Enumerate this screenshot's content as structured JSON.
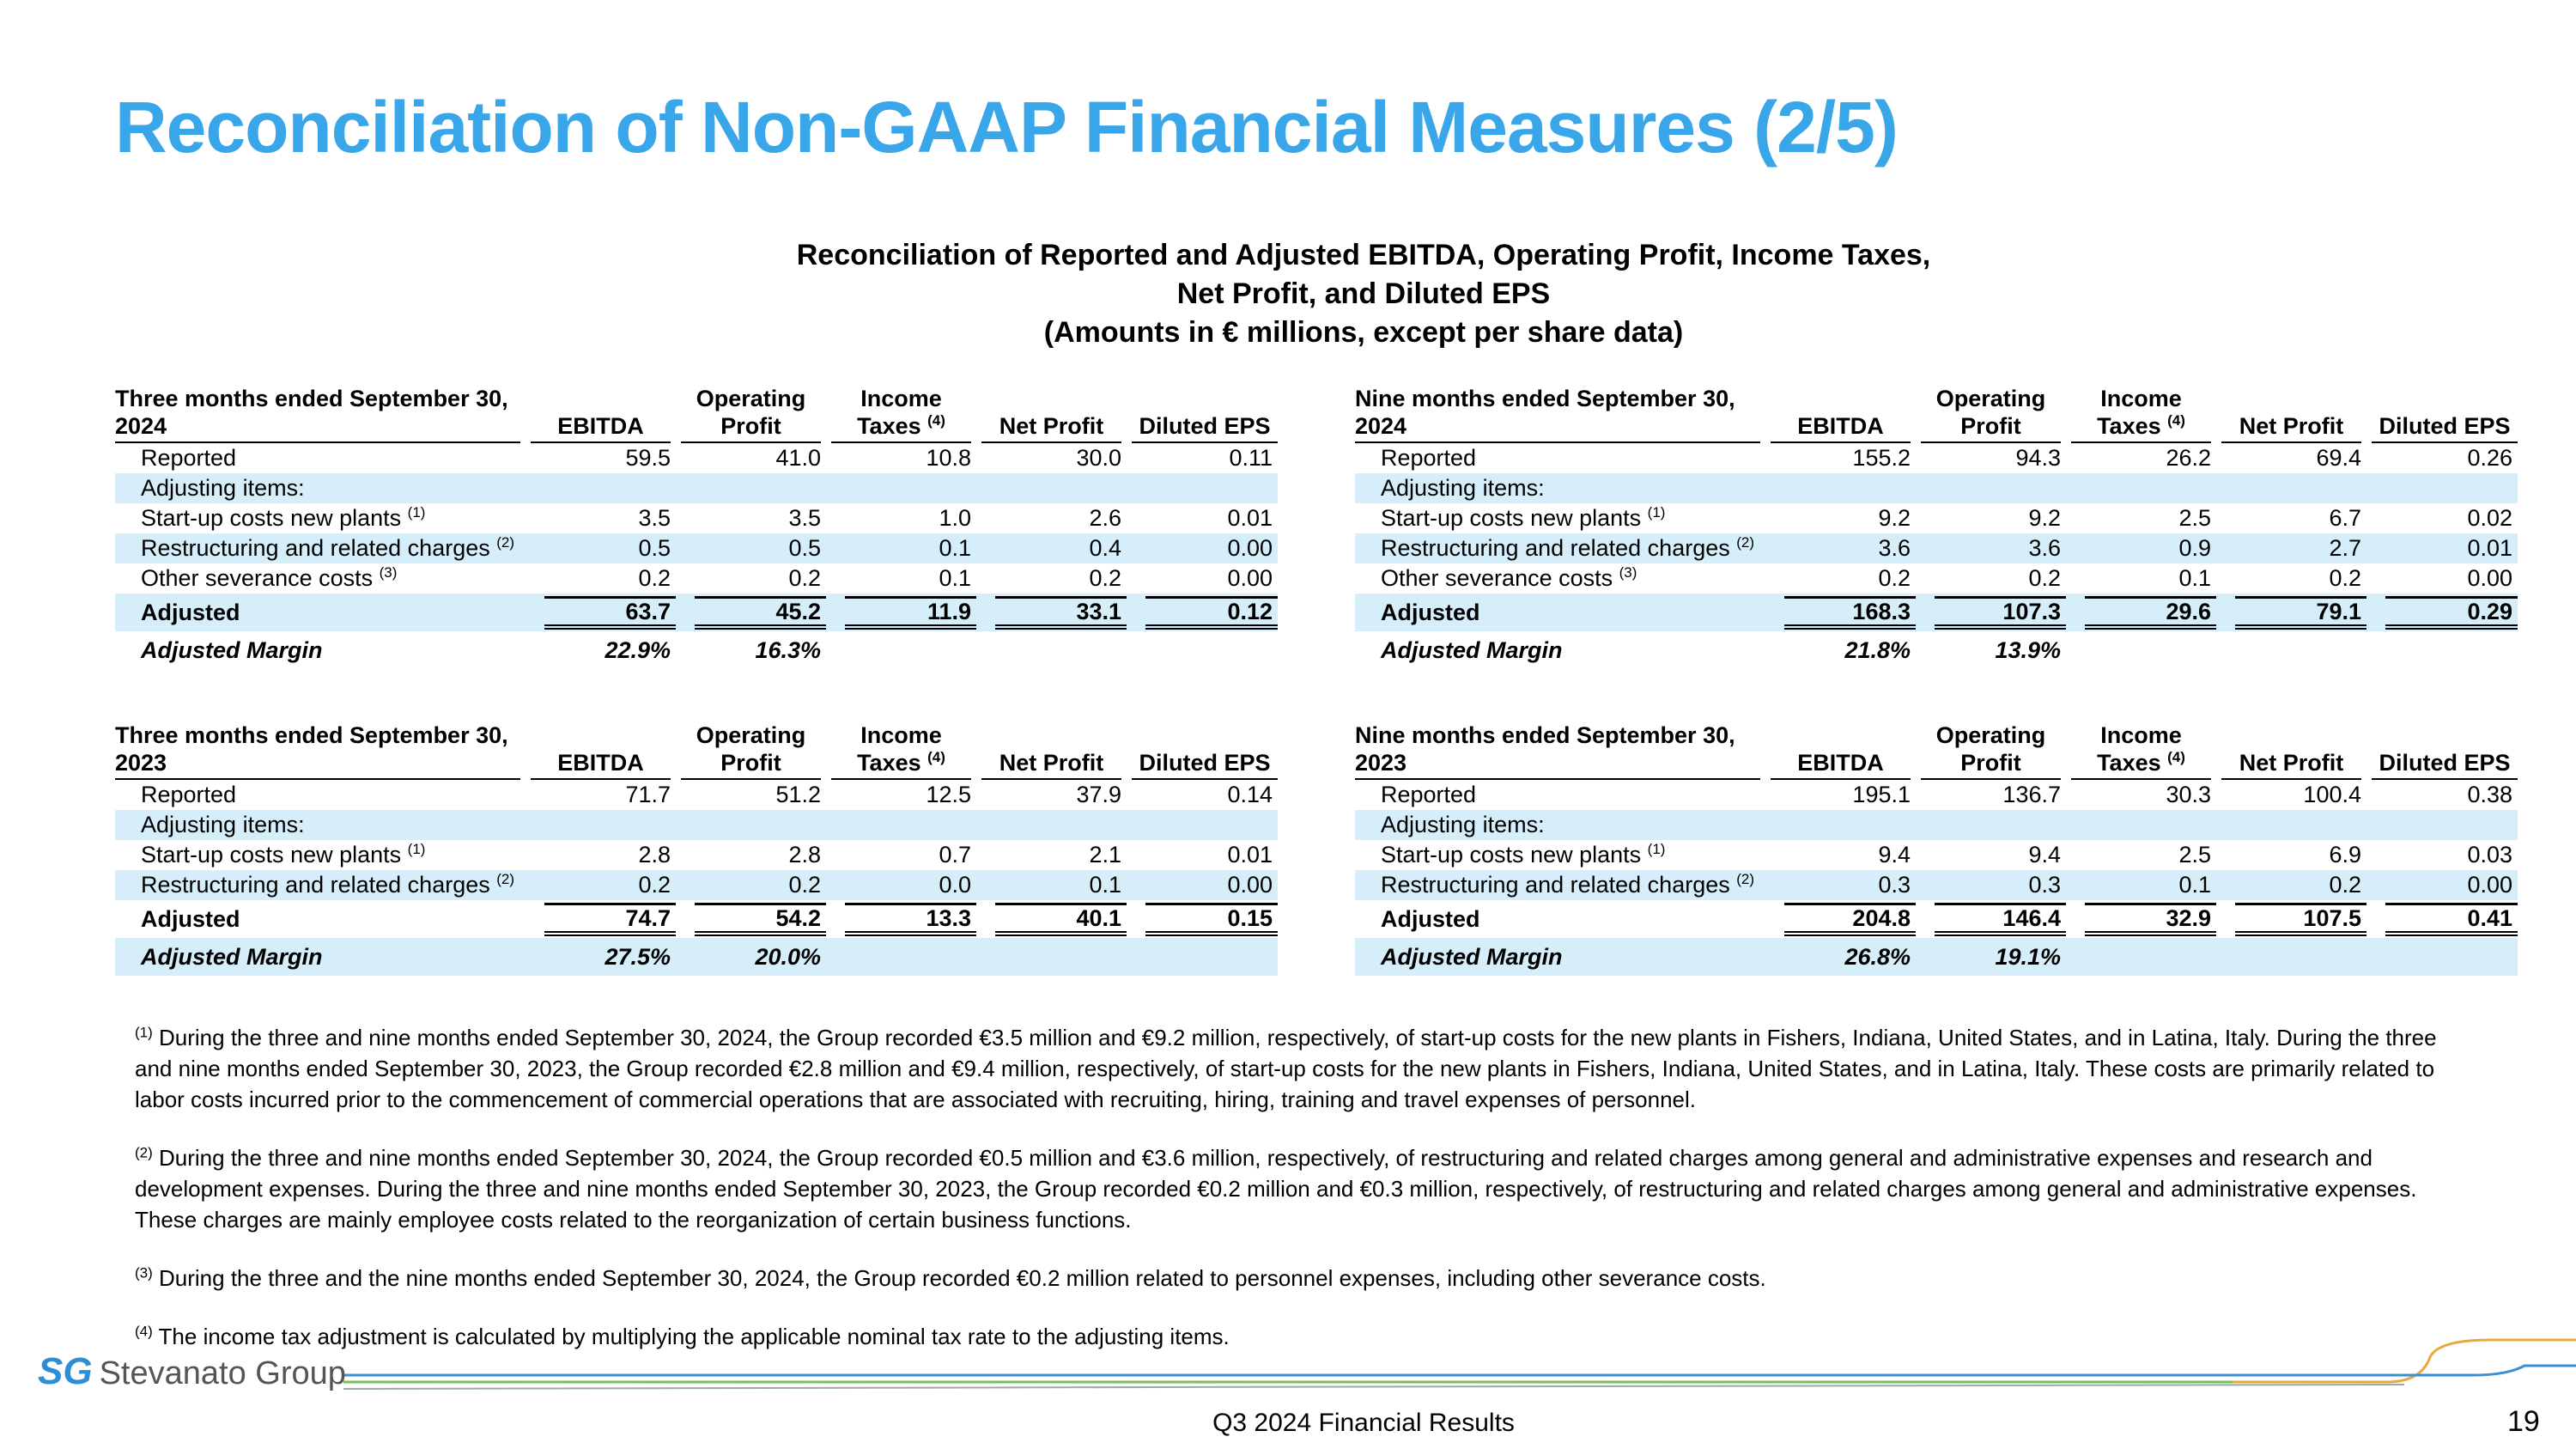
{
  "title": "Reconciliation of Non-GAAP Financial Measures (2/5)",
  "subtitle": [
    "Reconciliation of Reported and Adjusted EBITDA, Operating Profit, Income Taxes,",
    "Net Profit, and Diluted EPS",
    "(Amounts in € millions, except per share data)"
  ],
  "columns": [
    {
      "lines": [
        "EBITDA"
      ]
    },
    {
      "lines": [
        "Operating",
        "Profit"
      ]
    },
    {
      "lines": [
        "Income",
        "Taxes"
      ],
      "note": "(4)"
    },
    {
      "lines": [
        "Net Profit"
      ]
    },
    {
      "lines": [
        "Diluted EPS"
      ]
    }
  ],
  "tables": [
    {
      "heading": [
        "Three months ended September 30,",
        "2024"
      ],
      "rows": [
        {
          "label": "Reported",
          "values": [
            "59.5",
            "41.0",
            "10.8",
            "30.0",
            "0.11"
          ]
        },
        {
          "label": "Adjusting items:",
          "values": []
        },
        {
          "label": "Start-up costs new plants",
          "note": "(1)",
          "values": [
            "3.5",
            "3.5",
            "1.0",
            "2.6",
            "0.01"
          ]
        },
        {
          "label": "Restructuring and related charges",
          "note": "(2)",
          "values": [
            "0.5",
            "0.5",
            "0.1",
            "0.4",
            "0.00"
          ]
        },
        {
          "label": "Other severance costs",
          "note": "(3)",
          "values": [
            "0.2",
            "0.2",
            "0.1",
            "0.2",
            "0.00"
          ]
        },
        {
          "label": "Adjusted",
          "values": [
            "63.7",
            "45.2",
            "11.9",
            "33.1",
            "0.12"
          ]
        },
        {
          "label": "Adjusted Margin",
          "values": [
            "22.9%",
            "16.3%"
          ]
        }
      ]
    },
    {
      "heading": [
        "Nine months ended September 30,",
        "2024"
      ],
      "rows": [
        {
          "label": "Reported",
          "values": [
            "155.2",
            "94.3",
            "26.2",
            "69.4",
            "0.26"
          ]
        },
        {
          "label": "Adjusting items:",
          "values": []
        },
        {
          "label": "Start-up costs new plants",
          "note": "(1)",
          "values": [
            "9.2",
            "9.2",
            "2.5",
            "6.7",
            "0.02"
          ]
        },
        {
          "label": "Restructuring and related charges",
          "note": "(2)",
          "values": [
            "3.6",
            "3.6",
            "0.9",
            "2.7",
            "0.01"
          ]
        },
        {
          "label": "Other severance costs",
          "note": "(3)",
          "values": [
            "0.2",
            "0.2",
            "0.1",
            "0.2",
            "0.00"
          ]
        },
        {
          "label": "Adjusted",
          "values": [
            "168.3",
            "107.3",
            "29.6",
            "79.1",
            "0.29"
          ]
        },
        {
          "label": "Adjusted Margin",
          "values": [
            "21.8%",
            "13.9%"
          ]
        }
      ]
    },
    {
      "heading": [
        "Three months ended September 30,",
        "2023"
      ],
      "rows": [
        {
          "label": "Reported",
          "values": [
            "71.7",
            "51.2",
            "12.5",
            "37.9",
            "0.14"
          ]
        },
        {
          "label": "Adjusting items:",
          "values": []
        },
        {
          "label": "Start-up costs new plants",
          "note": "(1)",
          "values": [
            "2.8",
            "2.8",
            "0.7",
            "2.1",
            "0.01"
          ]
        },
        {
          "label": "Restructuring and related charges",
          "note": "(2)",
          "values": [
            "0.2",
            "0.2",
            "0.0",
            "0.1",
            "0.00"
          ]
        },
        {
          "label": "Adjusted",
          "values": [
            "74.7",
            "54.2",
            "13.3",
            "40.1",
            "0.15"
          ]
        },
        {
          "label": "Adjusted Margin",
          "values": [
            "27.5%",
            "20.0%"
          ]
        }
      ]
    },
    {
      "heading": [
        "Nine months ended September 30,",
        "2023"
      ],
      "rows": [
        {
          "label": "Reported",
          "values": [
            "195.1",
            "136.7",
            "30.3",
            "100.4",
            "0.38"
          ]
        },
        {
          "label": "Adjusting items:",
          "values": []
        },
        {
          "label": "Start-up costs new plants",
          "note": "(1)",
          "values": [
            "9.4",
            "9.4",
            "2.5",
            "6.9",
            "0.03"
          ]
        },
        {
          "label": "Restructuring and related charges",
          "note": "(2)",
          "values": [
            "0.3",
            "0.3",
            "0.1",
            "0.2",
            "0.00"
          ]
        },
        {
          "label": "Adjusted",
          "values": [
            "204.8",
            "146.4",
            "32.9",
            "107.5",
            "0.41"
          ]
        },
        {
          "label": "Adjusted Margin",
          "values": [
            "26.8%",
            "19.1%"
          ]
        }
      ]
    }
  ],
  "footnotes": [
    {
      "note": "(1)",
      "text": "During the three and nine months ended September 30, 2024, the Group recorded €3.5 million and €9.2 million, respectively, of start-up costs for the new plants in Fishers, Indiana, United States, and in Latina, Italy. During the three and nine months ended September 30, 2023, the Group recorded €2.8 million and €9.4 million, respectively, of start-up costs for the new plants in Fishers, Indiana, United States, and in Latina, Italy. These costs are primarily related to labor costs incurred prior to the commencement of commercial operations that are associated with recruiting, hiring, training and travel expenses of personnel."
    },
    {
      "note": "(2)",
      "text": "During the three and nine months ended September 30, 2024, the Group recorded €0.5 million and €3.6 million, respectively, of restructuring and related charges among general and administrative expenses and research and development expenses. During the three and nine months ended September 30, 2023, the Group recorded €0.2 million and €0.3 million, respectively, of restructuring and related charges among general and administrative expenses. These charges are mainly employee costs related to the reorganization of certain business functions."
    },
    {
      "note": "(3)",
      "text": "During the three and the nine months ended September 30, 2024, the Group recorded €0.2 million related to personnel expenses, including other severance costs."
    },
    {
      "note": "(4)",
      "text": "The income tax adjustment is calculated by multiplying the applicable nominal tax rate to the adjusting items."
    }
  ],
  "footer": {
    "logo_mark": "SG",
    "logo_text": "Stevanato Group",
    "center": "Q3 2024 Financial Results",
    "page": "19"
  }
}
